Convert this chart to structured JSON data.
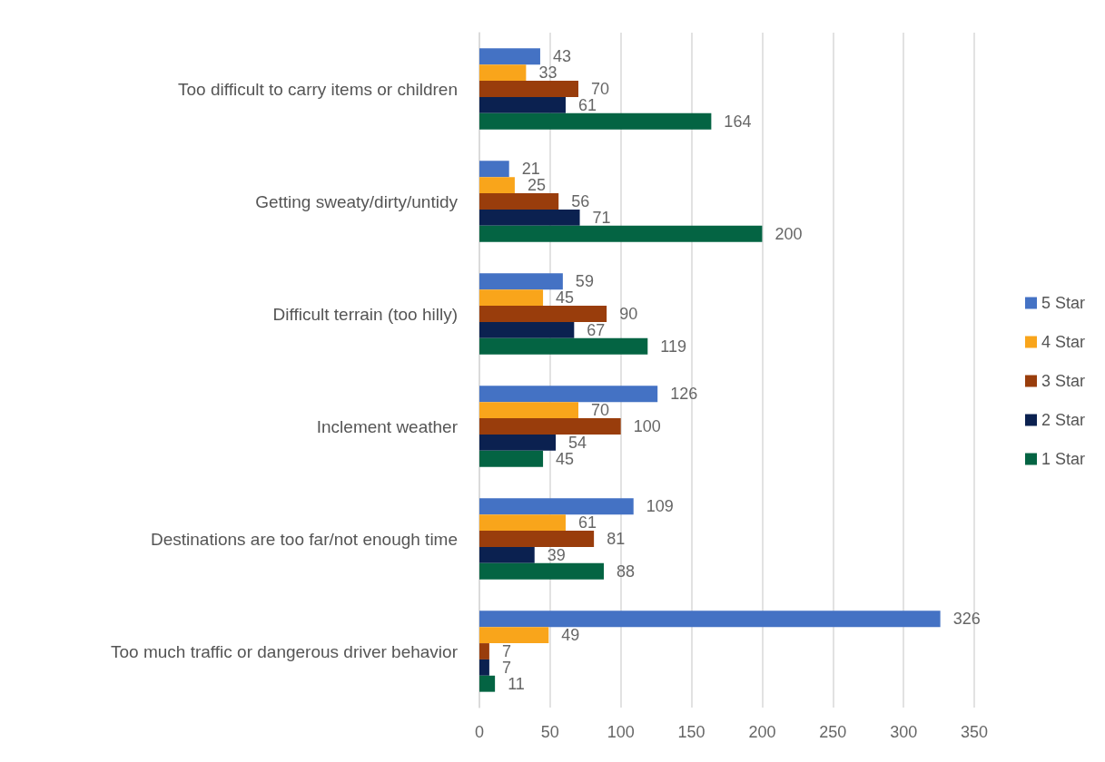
{
  "chart_data": {
    "type": "bar",
    "orientation": "horizontal",
    "categories": [
      "Too difficult to carry items or children",
      "Getting sweaty/dirty/untidy",
      "Difficult terrain (too hilly)",
      "Inclement weather",
      "Destinations are too far/not enough time",
      "Too much traffic or dangerous driver behavior"
    ],
    "series": [
      {
        "name": "5 Star",
        "color": "#4472c4",
        "values": [
          43,
          21,
          59,
          126,
          109,
          326
        ]
      },
      {
        "name": "4 Star",
        "color": "#f9a51b",
        "values": [
          33,
          25,
          45,
          70,
          61,
          49
        ]
      },
      {
        "name": "3 Star",
        "color": "#993d0c",
        "values": [
          70,
          56,
          90,
          100,
          81,
          7
        ]
      },
      {
        "name": "2 Star",
        "color": "#0b2150",
        "values": [
          61,
          71,
          67,
          54,
          39,
          7
        ]
      },
      {
        "name": "1 Star",
        "color": "#046443",
        "values": [
          164,
          200,
          119,
          45,
          88,
          11
        ]
      }
    ],
    "xlim": [
      0,
      350
    ],
    "xticks": [
      0,
      50,
      100,
      150,
      200,
      250,
      300,
      350
    ],
    "grid": "x",
    "legend": "right",
    "data_labels": true
  }
}
